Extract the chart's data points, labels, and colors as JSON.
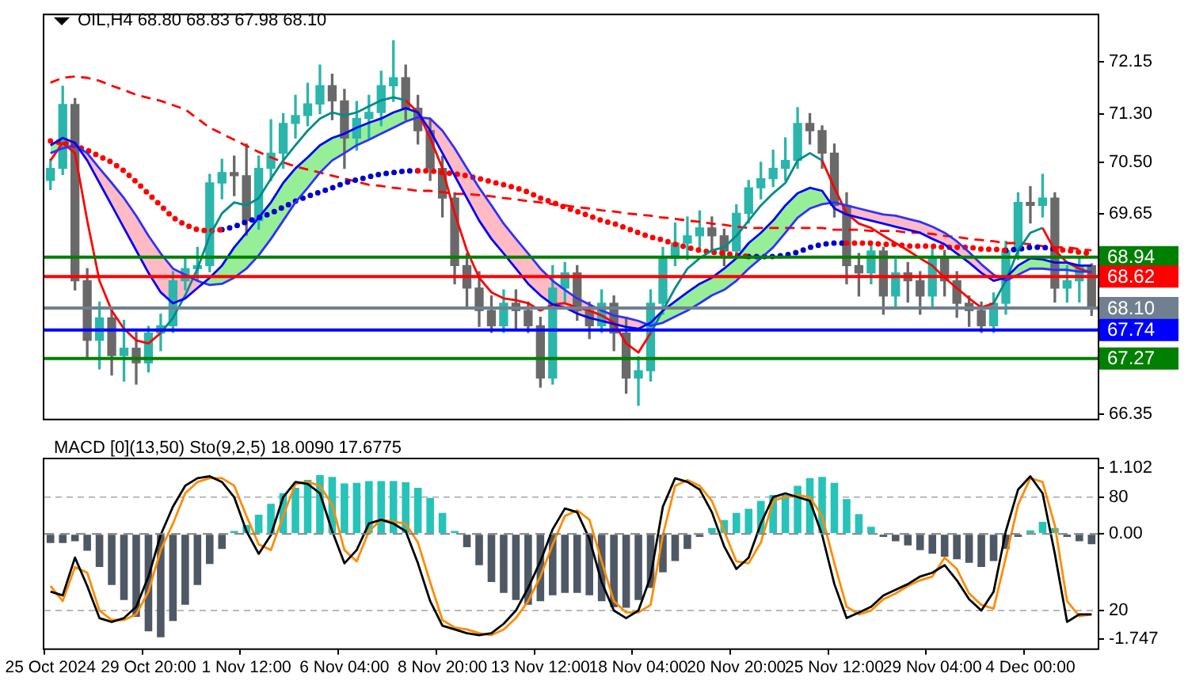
{
  "chart_data": [
    {
      "type": "candlestick",
      "title": "OIL,H4 68.80 68.83 67.98 68.10",
      "categories": [
        null,
        null,
        null,
        null,
        null,
        null,
        null,
        null,
        null,
        null,
        null,
        null,
        null,
        null,
        null,
        null,
        null,
        null,
        null,
        null,
        null,
        null,
        null,
        null,
        null,
        null,
        null,
        null,
        null,
        null,
        null,
        null,
        null,
        null,
        null,
        null,
        null,
        null,
        null,
        null,
        null,
        null,
        null,
        null,
        null,
        null,
        null,
        null,
        null,
        null,
        null,
        null,
        null,
        null,
        null,
        null,
        null,
        null,
        null,
        null,
        null,
        null,
        null,
        null,
        null,
        null,
        null,
        null,
        null,
        null,
        null,
        null,
        null,
        null,
        null,
        null,
        null,
        null,
        null,
        null,
        null,
        null,
        null,
        null,
        null,
        null
      ],
      "ohlc": [
        [
          70.2,
          70.55,
          70.05,
          70.4
        ],
        [
          70.4,
          71.75,
          70.3,
          71.45
        ],
        [
          71.45,
          71.55,
          68.4,
          68.55
        ],
        [
          68.55,
          68.75,
          67.3,
          67.57
        ],
        [
          67.57,
          68.2,
          67.1,
          67.94
        ],
        [
          67.94,
          68.1,
          67.0,
          67.32
        ],
        [
          67.32,
          67.9,
          66.9,
          67.44
        ],
        [
          67.44,
          67.7,
          66.85,
          67.2
        ],
        [
          67.2,
          67.8,
          67.05,
          67.69
        ],
        [
          67.69,
          68.0,
          67.4,
          67.81
        ],
        [
          67.81,
          68.7,
          67.7,
          68.55
        ],
        [
          68.55,
          68.95,
          68.4,
          68.75
        ],
        [
          68.75,
          69.1,
          68.55,
          68.8
        ],
        [
          68.8,
          70.3,
          68.7,
          70.16
        ],
        [
          70.16,
          70.55,
          69.9,
          70.33
        ],
        [
          70.33,
          70.6,
          69.95,
          70.28
        ],
        [
          70.28,
          70.8,
          69.3,
          69.54
        ],
        [
          69.54,
          70.6,
          69.4,
          70.4
        ],
        [
          70.4,
          71.2,
          70.2,
          70.65
        ],
        [
          70.65,
          71.3,
          70.4,
          71.14
        ],
        [
          71.14,
          71.6,
          70.9,
          71.27
        ],
        [
          71.27,
          71.8,
          71.1,
          71.46
        ],
        [
          71.46,
          72.1,
          71.3,
          71.76
        ],
        [
          71.76,
          71.95,
          71.2,
          71.51
        ],
        [
          71.51,
          71.7,
          70.4,
          70.9
        ],
        [
          70.9,
          71.5,
          70.7,
          71.22
        ],
        [
          71.22,
          71.6,
          70.9,
          71.32
        ],
        [
          71.32,
          72.0,
          71.1,
          71.76
        ],
        [
          71.76,
          72.5,
          71.5,
          71.89
        ],
        [
          71.89,
          72.1,
          71.2,
          71.39
        ],
        [
          71.39,
          71.6,
          70.8,
          71.02
        ],
        [
          71.02,
          71.2,
          70.2,
          70.4
        ],
        [
          70.4,
          70.6,
          69.6,
          69.91
        ],
        [
          69.91,
          70.0,
          68.5,
          68.8
        ],
        [
          68.8,
          69.0,
          68.1,
          68.43
        ],
        [
          68.43,
          68.7,
          67.8,
          68.06
        ],
        [
          68.06,
          68.3,
          67.7,
          67.81
        ],
        [
          67.81,
          68.4,
          67.7,
          68.18
        ],
        [
          68.18,
          68.4,
          67.75,
          68.06
        ],
        [
          68.06,
          68.2,
          67.7,
          67.81
        ],
        [
          67.81,
          67.95,
          66.8,
          66.95
        ],
        [
          66.95,
          68.8,
          66.85,
          68.43
        ],
        [
          68.43,
          68.85,
          68.2,
          68.68
        ],
        [
          68.68,
          68.8,
          67.9,
          68.06
        ],
        [
          68.06,
          68.2,
          67.6,
          67.81
        ],
        [
          67.81,
          68.4,
          67.7,
          68.18
        ],
        [
          68.18,
          68.3,
          67.4,
          67.69
        ],
        [
          67.69,
          67.95,
          66.7,
          66.95
        ],
        [
          66.95,
          67.3,
          66.5,
          67.07
        ],
        [
          67.07,
          68.4,
          66.9,
          68.18
        ],
        [
          68.18,
          69.1,
          68.0,
          68.92
        ],
        [
          68.92,
          69.5,
          68.8,
          69.17
        ],
        [
          69.17,
          69.6,
          68.9,
          69.29
        ],
        [
          69.29,
          69.7,
          69.1,
          69.42
        ],
        [
          69.42,
          69.6,
          69.05,
          69.29
        ],
        [
          69.29,
          69.4,
          68.8,
          69.04
        ],
        [
          69.04,
          69.8,
          68.95,
          69.66
        ],
        [
          69.66,
          70.2,
          69.5,
          70.08
        ],
        [
          70.08,
          70.5,
          69.9,
          70.23
        ],
        [
          70.23,
          70.7,
          70.1,
          70.4
        ],
        [
          70.4,
          70.9,
          70.2,
          70.53
        ],
        [
          70.53,
          71.4,
          70.4,
          71.14
        ],
        [
          71.14,
          71.3,
          70.8,
          71.02
        ],
        [
          71.02,
          71.1,
          70.4,
          70.65
        ],
        [
          70.65,
          70.8,
          69.6,
          69.79
        ],
        [
          69.79,
          70.0,
          68.5,
          68.8
        ],
        [
          68.8,
          69.0,
          68.3,
          68.68
        ],
        [
          68.68,
          69.2,
          68.5,
          69.04
        ],
        [
          69.04,
          69.1,
          68.0,
          68.3
        ],
        [
          68.3,
          68.9,
          68.1,
          68.68
        ],
        [
          68.68,
          68.85,
          68.2,
          68.55
        ],
        [
          68.55,
          68.7,
          68.0,
          68.3
        ],
        [
          68.3,
          69.1,
          68.1,
          68.92
        ],
        [
          68.92,
          69.05,
          68.3,
          68.55
        ],
        [
          68.55,
          68.7,
          67.95,
          68.18
        ],
        [
          68.18,
          68.3,
          67.8,
          68.06
        ],
        [
          68.06,
          68.2,
          67.7,
          67.81
        ],
        [
          67.81,
          68.35,
          67.7,
          68.18
        ],
        [
          68.18,
          69.2,
          68.0,
          69.04
        ],
        [
          69.04,
          70.0,
          68.9,
          69.84
        ],
        [
          69.84,
          70.1,
          69.5,
          69.79
        ],
        [
          69.79,
          70.3,
          69.6,
          69.91
        ],
        [
          69.91,
          70.0,
          68.2,
          68.43
        ],
        [
          68.43,
          68.8,
          68.2,
          68.55
        ],
        [
          68.55,
          68.95,
          68.2,
          68.8
        ],
        [
          68.8,
          68.83,
          67.98,
          68.1
        ]
      ],
      "colors": [
        "#2bb5ab",
        "#2bb5ab",
        "#696969",
        "#696969",
        "#2bb5ab",
        "#696969",
        "#2bb5ab",
        "#696969",
        "#2bb5ab",
        "#2bb5ab",
        "#2bb5ab",
        "#2bb5ab",
        "#2bb5ab",
        "#2bb5ab",
        "#2bb5ab",
        "#696969",
        "#696969",
        "#2bb5ab",
        "#2bb5ab",
        "#2bb5ab",
        "#2bb5ab",
        "#2bb5ab",
        "#2bb5ab",
        "#696969",
        "#696969",
        "#2bb5ab",
        "#2bb5ab",
        "#2bb5ab",
        "#2bb5ab",
        "#696969",
        "#696969",
        "#696969",
        "#696969",
        "#696969",
        "#696969",
        "#696969",
        "#696969",
        "#2bb5ab",
        "#696969",
        "#696969",
        "#696969",
        "#2bb5ab",
        "#2bb5ab",
        "#696969",
        "#696969",
        "#2bb5ab",
        "#696969",
        "#696969",
        "#2bb5ab",
        "#2bb5ab",
        "#2bb5ab",
        "#2bb5ab",
        "#2bb5ab",
        "#2bb5ab",
        "#696969",
        "#696969",
        "#2bb5ab",
        "#2bb5ab",
        "#2bb5ab",
        "#2bb5ab",
        "#2bb5ab",
        "#2bb5ab",
        "#696969",
        "#696969",
        "#696969",
        "#696969",
        "#696969",
        "#2bb5ab",
        "#696969",
        "#2bb5ab",
        "#696969",
        "#696969",
        "#2bb5ab",
        "#696969",
        "#696969",
        "#696969",
        "#696969",
        "#2bb5ab",
        "#2bb5ab",
        "#2bb5ab",
        "#696969",
        "#2bb5ab",
        "#696969",
        "#2bb5ab",
        "#2bb5ab",
        "#696969"
      ],
      "series": [
        {
          "type": "line",
          "color": "#0000ff",
          "values": [
            70.78,
            70.9,
            70.82,
            70.53,
            70.16,
            69.79,
            69.42,
            69.05,
            68.68,
            68.36,
            68.18,
            68.26,
            68.43,
            68.6,
            68.8,
            69.1,
            69.34,
            69.59,
            69.84,
            70.16,
            70.4,
            70.58,
            70.78,
            70.9,
            70.97,
            71.07,
            71.15,
            71.22,
            71.32,
            71.39,
            71.32,
            71.02,
            70.65,
            70.28,
            69.91,
            69.54,
            69.24,
            69.0,
            68.75,
            68.5,
            68.31,
            68.16,
            68.11,
            68.01,
            67.94,
            67.89,
            67.84,
            67.79,
            67.76,
            67.86,
            68.06,
            68.21,
            68.36,
            68.5,
            68.6,
            68.75,
            68.92,
            69.17,
            69.34,
            69.54,
            69.79,
            69.99,
            70.08,
            70.03,
            69.74,
            69.64,
            69.59,
            69.54,
            69.49,
            69.44,
            69.39,
            69.34,
            69.24,
            69.15,
            69.0,
            68.85,
            68.68,
            68.55,
            68.6,
            68.8,
            68.92,
            68.9,
            68.85,
            68.85,
            68.8,
            68.8
          ]
        },
        {
          "type": "line",
          "color": "#3030ff",
          "lower": [
            70.65,
            70.73,
            70.78,
            70.65,
            70.4,
            70.16,
            69.91,
            69.62,
            69.29,
            69.0,
            68.75,
            68.65,
            68.55,
            68.48,
            68.5,
            68.6,
            68.75,
            68.97,
            69.24,
            69.54,
            69.84,
            70.08,
            70.33,
            70.53,
            70.65,
            70.78,
            70.87,
            70.97,
            71.07,
            71.17,
            71.24,
            71.22,
            71.02,
            70.73,
            70.4,
            70.08,
            69.79,
            69.49,
            69.24,
            69.0,
            68.75,
            68.55,
            68.4,
            68.26,
            68.16,
            68.06,
            67.98,
            67.94,
            67.89,
            67.81,
            67.86,
            67.96,
            68.06,
            68.18,
            68.31,
            68.4,
            68.55,
            68.75,
            68.92,
            69.1,
            69.34,
            69.59,
            69.74,
            69.81,
            69.84,
            69.79,
            69.74,
            69.69,
            69.64,
            69.62,
            69.57,
            69.52,
            69.44,
            69.34,
            69.2,
            69.02,
            68.82,
            68.65,
            68.55,
            68.65,
            68.75,
            68.75,
            68.73,
            68.73,
            68.7,
            68.7
          ],
          "upper": [
            70.78,
            70.9,
            70.82,
            70.53,
            70.16,
            69.79,
            69.42,
            69.05,
            68.68,
            68.36,
            68.18,
            68.26,
            68.43,
            68.6,
            68.8,
            69.1,
            69.34,
            69.59,
            69.84,
            70.16,
            70.4,
            70.58,
            70.78,
            70.9,
            70.97,
            71.07,
            71.15,
            71.22,
            71.32,
            71.39,
            71.32,
            71.02,
            70.65,
            70.28,
            69.91,
            69.54,
            69.24,
            69.0,
            68.75,
            68.5,
            68.31,
            68.16,
            68.11,
            68.01,
            67.94,
            67.89,
            67.84,
            67.79,
            67.76,
            67.86,
            68.06,
            68.21,
            68.36,
            68.5,
            68.6,
            68.75,
            68.92,
            69.17,
            69.34,
            69.54,
            69.79,
            69.99,
            70.08,
            70.03,
            69.74,
            69.64,
            69.59,
            69.54,
            69.49,
            69.44,
            69.39,
            69.34,
            69.24,
            69.15,
            69.0,
            68.85,
            68.68,
            68.55,
            68.6,
            68.8,
            68.92,
            68.9,
            68.85,
            68.85,
            68.8,
            68.8
          ],
          "values": [
            70.65,
            70.73,
            70.78,
            70.65,
            70.4,
            70.16,
            69.91,
            69.62,
            69.29,
            69.0,
            68.75,
            68.65,
            68.55,
            68.48,
            68.5,
            68.6,
            68.75,
            68.97,
            69.24,
            69.54,
            69.84,
            70.08,
            70.33,
            70.53,
            70.65,
            70.78,
            70.87,
            70.97,
            71.07,
            71.17,
            71.24,
            71.22,
            71.02,
            70.73,
            70.4,
            70.08,
            69.79,
            69.49,
            69.24,
            69.0,
            68.75,
            68.55,
            68.4,
            68.26,
            68.16,
            68.06,
            67.98,
            67.94,
            67.89,
            67.81,
            67.86,
            67.96,
            68.06,
            68.18,
            68.31,
            68.4,
            68.55,
            68.75,
            68.92,
            69.1,
            69.34,
            69.59,
            69.74,
            69.81,
            69.84,
            69.79,
            69.74,
            69.69,
            69.64,
            69.62,
            69.57,
            69.52,
            69.44,
            69.34,
            69.2,
            69.02,
            68.82,
            68.65,
            68.55,
            68.65,
            68.75,
            68.75,
            68.73,
            68.73,
            68.7,
            68.7
          ]
        },
        {
          "type": "line",
          "color": "#ff0000",
          "values": [
            70.53,
            70.82,
            70.65,
            69.54,
            68.55,
            68.06,
            67.76,
            67.57,
            67.52,
            67.69,
            null,
            null,
            null,
            null,
            null,
            null,
            null,
            null,
            null,
            null,
            null,
            null,
            null,
            null,
            null,
            null,
            null,
            null,
            null,
            71.52,
            71.32,
            70.9,
            70.4,
            69.66,
            69.05,
            68.6,
            68.36,
            68.26,
            68.23,
            68.18,
            68.06,
            68.16,
            68.18,
            68.11,
            68.06,
            67.98,
            67.86,
            67.52,
            67.37,
            67.69,
            null,
            null,
            null,
            null,
            null,
            null,
            null,
            null,
            null,
            null,
            null,
            null,
            null,
            70.53,
            70.08,
            69.66,
            69.49,
            69.42,
            69.29,
            69.17,
            69.05,
            68.92,
            68.8,
            68.6,
            68.43,
            68.26,
            68.11,
            68.18,
            null,
            null,
            null,
            69.42,
            69.05,
            68.85,
            68.75,
            68.68
          ]
        },
        {
          "type": "line",
          "color": "#008b8b",
          "values": [
            null,
            null,
            null,
            null,
            null,
            null,
            null,
            null,
            null,
            67.69,
            67.94,
            68.31,
            68.75,
            69.29,
            69.66,
            69.84,
            69.79,
            69.91,
            70.23,
            70.53,
            70.78,
            71.02,
            71.22,
            71.32,
            71.27,
            71.32,
            71.42,
            71.52,
            71.57,
            71.52,
            null,
            null,
            null,
            null,
            null,
            null,
            null,
            null,
            null,
            null,
            null,
            null,
            null,
            null,
            null,
            null,
            null,
            null,
            null,
            67.69,
            68.06,
            68.43,
            68.75,
            68.92,
            69.05,
            69.1,
            69.29,
            69.54,
            69.79,
            69.99,
            70.16,
            70.53,
            70.65,
            70.53,
            null,
            null,
            null,
            null,
            null,
            null,
            null,
            null,
            null,
            null,
            null,
            null,
            null,
            68.18,
            68.55,
            69.05,
            69.34,
            69.42,
            null,
            null,
            null,
            null
          ]
        },
        {
          "type": "line",
          "line_style": "dotted",
          "color": "#ff0000",
          "values": [
            70.85,
            70.82,
            70.77,
            70.7,
            70.6,
            70.5,
            70.36,
            70.18,
            69.98,
            69.79,
            69.59,
            69.47,
            69.39,
            69.37,
            69.39,
            null,
            null,
            null,
            null,
            null,
            null,
            null,
            null,
            null,
            null,
            null,
            null,
            null,
            null,
            null,
            70.36,
            70.36,
            70.33,
            70.31,
            70.28,
            70.23,
            70.18,
            70.13,
            70.08,
            70.01,
            69.91,
            69.84,
            69.76,
            69.69,
            69.62,
            69.54,
            69.49,
            69.42,
            69.34,
            69.27,
            69.22,
            69.15,
            69.1,
            69.05,
            69.02,
            69.0,
            68.97,
            68.95,
            null,
            null,
            null,
            null,
            null,
            null,
            null,
            69.17,
            69.17,
            69.17,
            69.15,
            69.15,
            69.12,
            69.12,
            69.12,
            69.1,
            69.1,
            69.1,
            69.07,
            69.07,
            69.05,
            null,
            null,
            null,
            69.07,
            69.05,
            69.02,
            69.0
          ]
        },
        {
          "type": "line",
          "line_style": "dotted",
          "color": "#0000cd",
          "values": [
            null,
            null,
            null,
            null,
            null,
            null,
            null,
            null,
            null,
            null,
            null,
            null,
            null,
            null,
            69.39,
            69.44,
            69.52,
            69.59,
            69.66,
            69.76,
            69.86,
            69.94,
            70.01,
            70.08,
            70.16,
            70.21,
            70.26,
            70.31,
            70.33,
            70.36,
            70.36,
            null,
            null,
            null,
            null,
            null,
            null,
            null,
            null,
            null,
            null,
            null,
            null,
            null,
            null,
            null,
            null,
            null,
            null,
            null,
            null,
            null,
            null,
            null,
            null,
            null,
            null,
            68.95,
            68.95,
            68.95,
            68.97,
            69.02,
            69.1,
            69.15,
            69.17,
            69.17,
            null,
            null,
            null,
            null,
            null,
            null,
            null,
            null,
            null,
            null,
            null,
            null,
            69.05,
            69.07,
            69.1,
            69.1,
            69.07,
            null,
            null,
            null
          ]
        },
        {
          "type": "line",
          "line_style": "dashed",
          "color": "#ff0000",
          "values": [
            71.81,
            71.89,
            71.91,
            71.89,
            71.84,
            71.76,
            71.69,
            71.61,
            71.56,
            71.51,
            71.44,
            71.37,
            71.22,
            71.07,
            70.97,
            70.87,
            70.77,
            70.67,
            70.58,
            70.5,
            70.43,
            70.38,
            70.33,
            70.28,
            70.23,
            70.18,
            70.13,
            70.11,
            70.08,
            70.06,
            70.03,
            70.03,
            70.01,
            69.98,
            69.98,
            69.96,
            69.94,
            69.91,
            69.89,
            69.86,
            69.84,
            69.81,
            69.79,
            69.76,
            69.74,
            69.71,
            69.69,
            69.66,
            69.64,
            69.62,
            69.59,
            69.57,
            69.54,
            69.52,
            69.49,
            69.47,
            69.44,
            69.42,
            69.42,
            69.42,
            69.42,
            69.42,
            69.42,
            69.42,
            69.39,
            69.39,
            69.39,
            69.37,
            69.37,
            69.37,
            69.34,
            69.34,
            69.32,
            69.29,
            69.27,
            69.24,
            69.22,
            69.2,
            69.17,
            69.17,
            69.15,
            69.12,
            69.1,
            69.1,
            69.07,
            69.05
          ]
        }
      ],
      "ref_lines": [
        {
          "axis": "y",
          "value": 68.94,
          "label": "68.94",
          "color": "#008000"
        },
        {
          "axis": "y",
          "value": 68.62,
          "label": "68.62",
          "color": "#ff0000"
        },
        {
          "axis": "y",
          "value": 68.1,
          "label": "68.10",
          "color": "#708090"
        },
        {
          "axis": "y",
          "value": 67.74,
          "label": "67.74",
          "color": "#0000ff"
        },
        {
          "axis": "y",
          "value": 67.27,
          "label": "67.27",
          "color": "#008000"
        }
      ],
      "ylim": [
        66.28,
        72.92
      ],
      "yticks": [
        72.15,
        {
          "value": 71.3,
          "label": "71.30"
        },
        {
          "value": 70.5,
          "label": "70.50"
        },
        69.65,
        66.35
      ],
      "tick_labels": "y"
    },
    {
      "type": "bar",
      "title": "MACD [0](13,50) Sto(9,2,5) 18.0090 17.6775",
      "categories": [
        "25 Oct 2024",
        null,
        null,
        null,
        null,
        null,
        null,
        null,
        "29 Oct 20:00",
        null,
        null,
        null,
        null,
        null,
        null,
        null,
        "1 Nov 12:00",
        null,
        null,
        null,
        null,
        null,
        null,
        null,
        "6 Nov 04:00",
        null,
        null,
        null,
        null,
        null,
        null,
        null,
        "8 Nov 20:00",
        null,
        null,
        null,
        null,
        null,
        null,
        null,
        "13 Nov 12:00",
        null,
        null,
        null,
        null,
        null,
        null,
        null,
        "18 Nov 04:00",
        null,
        null,
        null,
        null,
        null,
        null,
        null,
        "20 Nov 20:00",
        null,
        null,
        null,
        null,
        null,
        null,
        null,
        "25 Nov 12:00",
        null,
        null,
        null,
        null,
        null,
        null,
        null,
        "29 Nov 04:00",
        null,
        null,
        null,
        null,
        null,
        null,
        null,
        "4 Dec 00:00",
        null,
        null,
        null,
        null,
        null
      ],
      "series": [
        {
          "type": "bar",
          "axis": "y2",
          "colors": [
            "#4f5865",
            "#4f5865",
            "#4f5865",
            "#4f5865",
            "#4f5865",
            "#4f5865",
            "#4f5865",
            "#4f5865",
            "#4f5865",
            "#4f5865",
            "#4f5865",
            "#4f5865",
            "#4f5865",
            "#4f5865",
            "#4f5865",
            "#26c3b9",
            "#26c3b9",
            "#26c3b9",
            "#26c3b9",
            "#26c3b9",
            "#26c3b9",
            "#26c3b9",
            "#26c3b9",
            "#26c3b9",
            "#26c3b9",
            "#26c3b9",
            "#26c3b9",
            "#26c3b9",
            "#26c3b9",
            "#26c3b9",
            "#26c3b9",
            "#26c3b9",
            "#26c3b9",
            "#26c3b9",
            "#4f5865",
            "#4f5865",
            "#4f5865",
            "#4f5865",
            "#4f5865",
            "#4f5865",
            "#4f5865",
            "#4f5865",
            "#4f5865",
            "#4f5865",
            "#4f5865",
            "#4f5865",
            "#4f5865",
            "#4f5865",
            "#4f5865",
            "#4f5865",
            "#4f5865",
            "#4f5865",
            "#4f5865",
            "#4f5865",
            "#26c3b9",
            "#26c3b9",
            "#26c3b9",
            "#26c3b9",
            "#26c3b9",
            "#26c3b9",
            "#26c3b9",
            "#26c3b9",
            "#26c3b9",
            "#26c3b9",
            "#26c3b9",
            "#26c3b9",
            "#26c3b9",
            "#26c3b9",
            "#4f5865",
            "#4f5865",
            "#4f5865",
            "#4f5865",
            "#4f5865",
            "#4f5865",
            "#4f5865",
            "#4f5865",
            "#4f5865",
            "#4f5865",
            "#4f5865",
            "#4f5865",
            "#26c3b9",
            "#26c3b9",
            "#26c3b9",
            "#4f5865",
            "#4f5865",
            "#4f5865"
          ],
          "values": [
            -0.15,
            -0.15,
            -0.12,
            -0.28,
            -0.55,
            -0.85,
            -1.1,
            -1.38,
            -1.62,
            -1.72,
            -1.45,
            -1.18,
            -0.85,
            -0.5,
            -0.25,
            0.05,
            0.15,
            0.32,
            0.5,
            0.68,
            0.77,
            0.9,
            0.98,
            0.95,
            0.84,
            0.85,
            0.88,
            0.88,
            0.88,
            0.86,
            0.77,
            0.6,
            0.35,
            0.05,
            -0.22,
            -0.52,
            -0.8,
            -0.98,
            -1.1,
            -1.18,
            -1.12,
            -1.02,
            -0.98,
            -0.98,
            -1.02,
            -1.12,
            -1.22,
            -1.23,
            -1.1,
            -0.9,
            -0.64,
            -0.45,
            -0.25,
            -0.05,
            0.1,
            0.23,
            0.35,
            0.42,
            0.55,
            0.65,
            0.65,
            0.8,
            0.93,
            0.95,
            0.85,
            0.58,
            0.33,
            0.12,
            -0.05,
            -0.12,
            -0.19,
            -0.27,
            -0.33,
            -0.38,
            -0.42,
            -0.48,
            -0.55,
            -0.45,
            -0.25,
            -0.05,
            0.06,
            0.2,
            0.1,
            -0.05,
            -0.12,
            -0.17
          ]
        },
        {
          "type": "line",
          "color": "#000000",
          "values": [
            30,
            28,
            48,
            33,
            16,
            14,
            16,
            22,
            38,
            60,
            75,
            86,
            90,
            91,
            88,
            80,
            62,
            50,
            60,
            80,
            88,
            87,
            82,
            62,
            45,
            52,
            66,
            68,
            66,
            62,
            45,
            25,
            12,
            10,
            8,
            7,
            8,
            13,
            20,
            32,
            46,
            63,
            74,
            72,
            58,
            35,
            20,
            16,
            20,
            38,
            75,
            90,
            88,
            84,
            72,
            54,
            42,
            48,
            66,
            80,
            82,
            80,
            78,
            60,
            34,
            16,
            19,
            22,
            28,
            31,
            34,
            38,
            40,
            44,
            36,
            26,
            20,
            30,
            62,
            84,
            91,
            82,
            50,
            14,
            18,
            18
          ]
        },
        {
          "type": "line",
          "color": "#ff8c00",
          "values": [
            33,
            25,
            43,
            40,
            20,
            15,
            15,
            18,
            30,
            52,
            66,
            82,
            88,
            90,
            90,
            86,
            70,
            55,
            52,
            70,
            87,
            88,
            86,
            76,
            52,
            46,
            62,
            68,
            67,
            66,
            56,
            35,
            15,
            11,
            10,
            8,
            7,
            10,
            16,
            25,
            38,
            55,
            70,
            73,
            68,
            46,
            25,
            19,
            19,
            23,
            60,
            86,
            89,
            86,
            78,
            62,
            46,
            45,
            56,
            78,
            80,
            81,
            80,
            70,
            45,
            22,
            18,
            20,
            26,
            29,
            33,
            36,
            38,
            48,
            42,
            29,
            23,
            21,
            48,
            76,
            90,
            88,
            65,
            25,
            17,
            18
          ]
        }
      ],
      "ref_lines": [
        {
          "axis": "y2",
          "value": 0,
          "color": "#808080",
          "line_style": "dashed"
        }
      ],
      "ylim": [
        0,
        100
      ],
      "yticks": [
        20,
        80
      ],
      "y2lim": [
        -1.905,
        1.243
      ],
      "y2ticks": [
        1.102,
        {
          "value": 0,
          "label": "0.00"
        },
        -1.747
      ],
      "grid": "y"
    }
  ]
}
